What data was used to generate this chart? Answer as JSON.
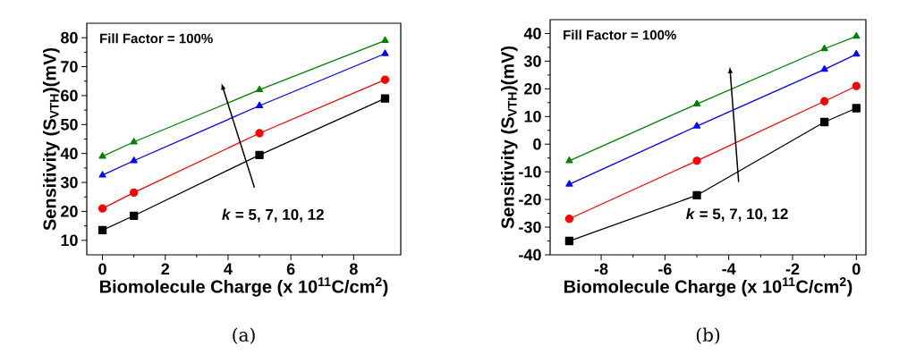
{
  "chart_data": [
    {
      "type": "line",
      "xlabel": "Biomolecule Charge (x 10$^{11}$C/cm$^{2}$)",
      "ylabel": "Sensitivity (S$_{VTH}$)(mV)",
      "x": [
        0,
        1,
        5,
        9
      ],
      "series": [
        {
          "color": "#000000",
          "marker": "square",
          "values": [
            13.5,
            18.5,
            39.5,
            59
          ]
        },
        {
          "color": "#ff0000",
          "marker": "circle",
          "values": [
            21,
            26.5,
            47,
            65.5
          ]
        },
        {
          "color": "#0000ff",
          "marker": "triangle",
          "values": [
            32.5,
            37.5,
            56.5,
            74.5
          ]
        },
        {
          "color": "#008000",
          "marker": "triangle",
          "values": [
            39,
            44,
            62,
            79
          ]
        }
      ],
      "xlim": [
        -0.5,
        9.5
      ],
      "ylim": [
        5,
        85
      ],
      "xticks": [
        0,
        2,
        4,
        6,
        8
      ],
      "yticks": [
        10,
        20,
        30,
        40,
        50,
        60,
        70,
        80
      ],
      "line_style": "solid",
      "annotations": [
        "Fill Factor = 100%",
        "*k* = 5, 7, 10, 12",
        "(a)"
      ]
    },
    {
      "type": "line",
      "xlabel": "Biomolecule Charge (x 10$^{11}$C/cm$^{2}$)",
      "ylabel": "Sensitivity (S$_{VTH}$)(mV)",
      "x": [
        -9,
        -5,
        -1,
        0
      ],
      "series": [
        {
          "color": "#000000",
          "marker": "square",
          "values": [
            -35,
            -18.5,
            8,
            13
          ]
        },
        {
          "color": "#ff0000",
          "marker": "circle",
          "values": [
            -27,
            -6,
            15.5,
            21
          ]
        },
        {
          "color": "#0000ff",
          "marker": "triangle",
          "values": [
            -14.5,
            6.5,
            27,
            32.5
          ]
        },
        {
          "color": "#008000",
          "marker": "triangle",
          "values": [
            -6,
            14.5,
            34.5,
            39
          ]
        }
      ],
      "xlim": [
        -9.6,
        0.3
      ],
      "ylim": [
        -40,
        45
      ],
      "xticks": [
        -8,
        -6,
        -4,
        -2,
        0
      ],
      "yticks": [
        -40,
        -30,
        -20,
        -10,
        0,
        10,
        20,
        30,
        40
      ],
      "line_style": "solid",
      "annotations": [
        "Fill Factor = 100%",
        "*k* = 5, 7, 10, 12",
        "(b)"
      ]
    }
  ]
}
